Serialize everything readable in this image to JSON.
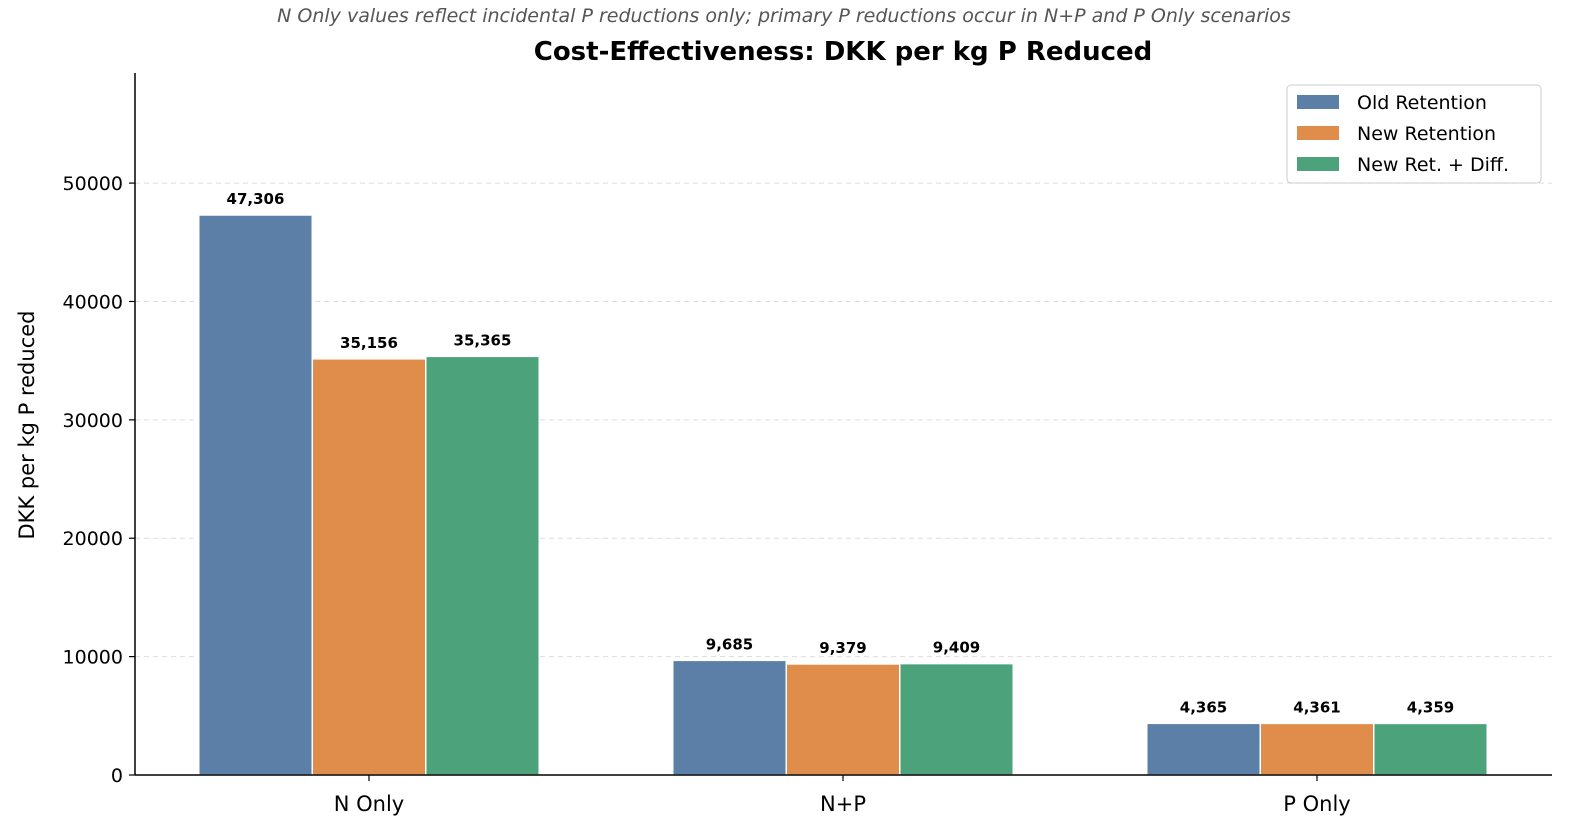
{
  "chart_data": {
    "type": "bar",
    "title": "Cost-Effectiveness: DKK per kg P Reduced",
    "subtitle": "N Only values reflect incidental P reductions only; primary P reductions occur in N+P and P Only scenarios",
    "xlabel": "",
    "ylabel": "DKK per kg P reduced",
    "categories": [
      "N Only",
      "N+P",
      "P Only"
    ],
    "series": [
      {
        "name": "Old Retention",
        "color": "#5b7fa6",
        "values": [
          47306,
          9685,
          4365
        ],
        "labels": [
          "47,306",
          "9,685",
          "4,365"
        ]
      },
      {
        "name": "New Retention",
        "color": "#e08d4b",
        "values": [
          35156,
          9379,
          4361
        ],
        "labels": [
          "35,156",
          "9,379",
          "4,361"
        ]
      },
      {
        "name": "New Ret. + Diff.",
        "color": "#4ca37b",
        "values": [
          35365,
          9409,
          4359
        ],
        "labels": [
          "35,365",
          "9,409",
          "4,359"
        ]
      }
    ],
    "ylim": [
      0,
      59300
    ],
    "yticks": [
      0,
      10000,
      20000,
      30000,
      40000,
      50000
    ],
    "ytick_labels": [
      "0",
      "10000",
      "20000",
      "30000",
      "40000",
      "50000"
    ],
    "grid": "y-dashed",
    "legend": "top-right"
  }
}
